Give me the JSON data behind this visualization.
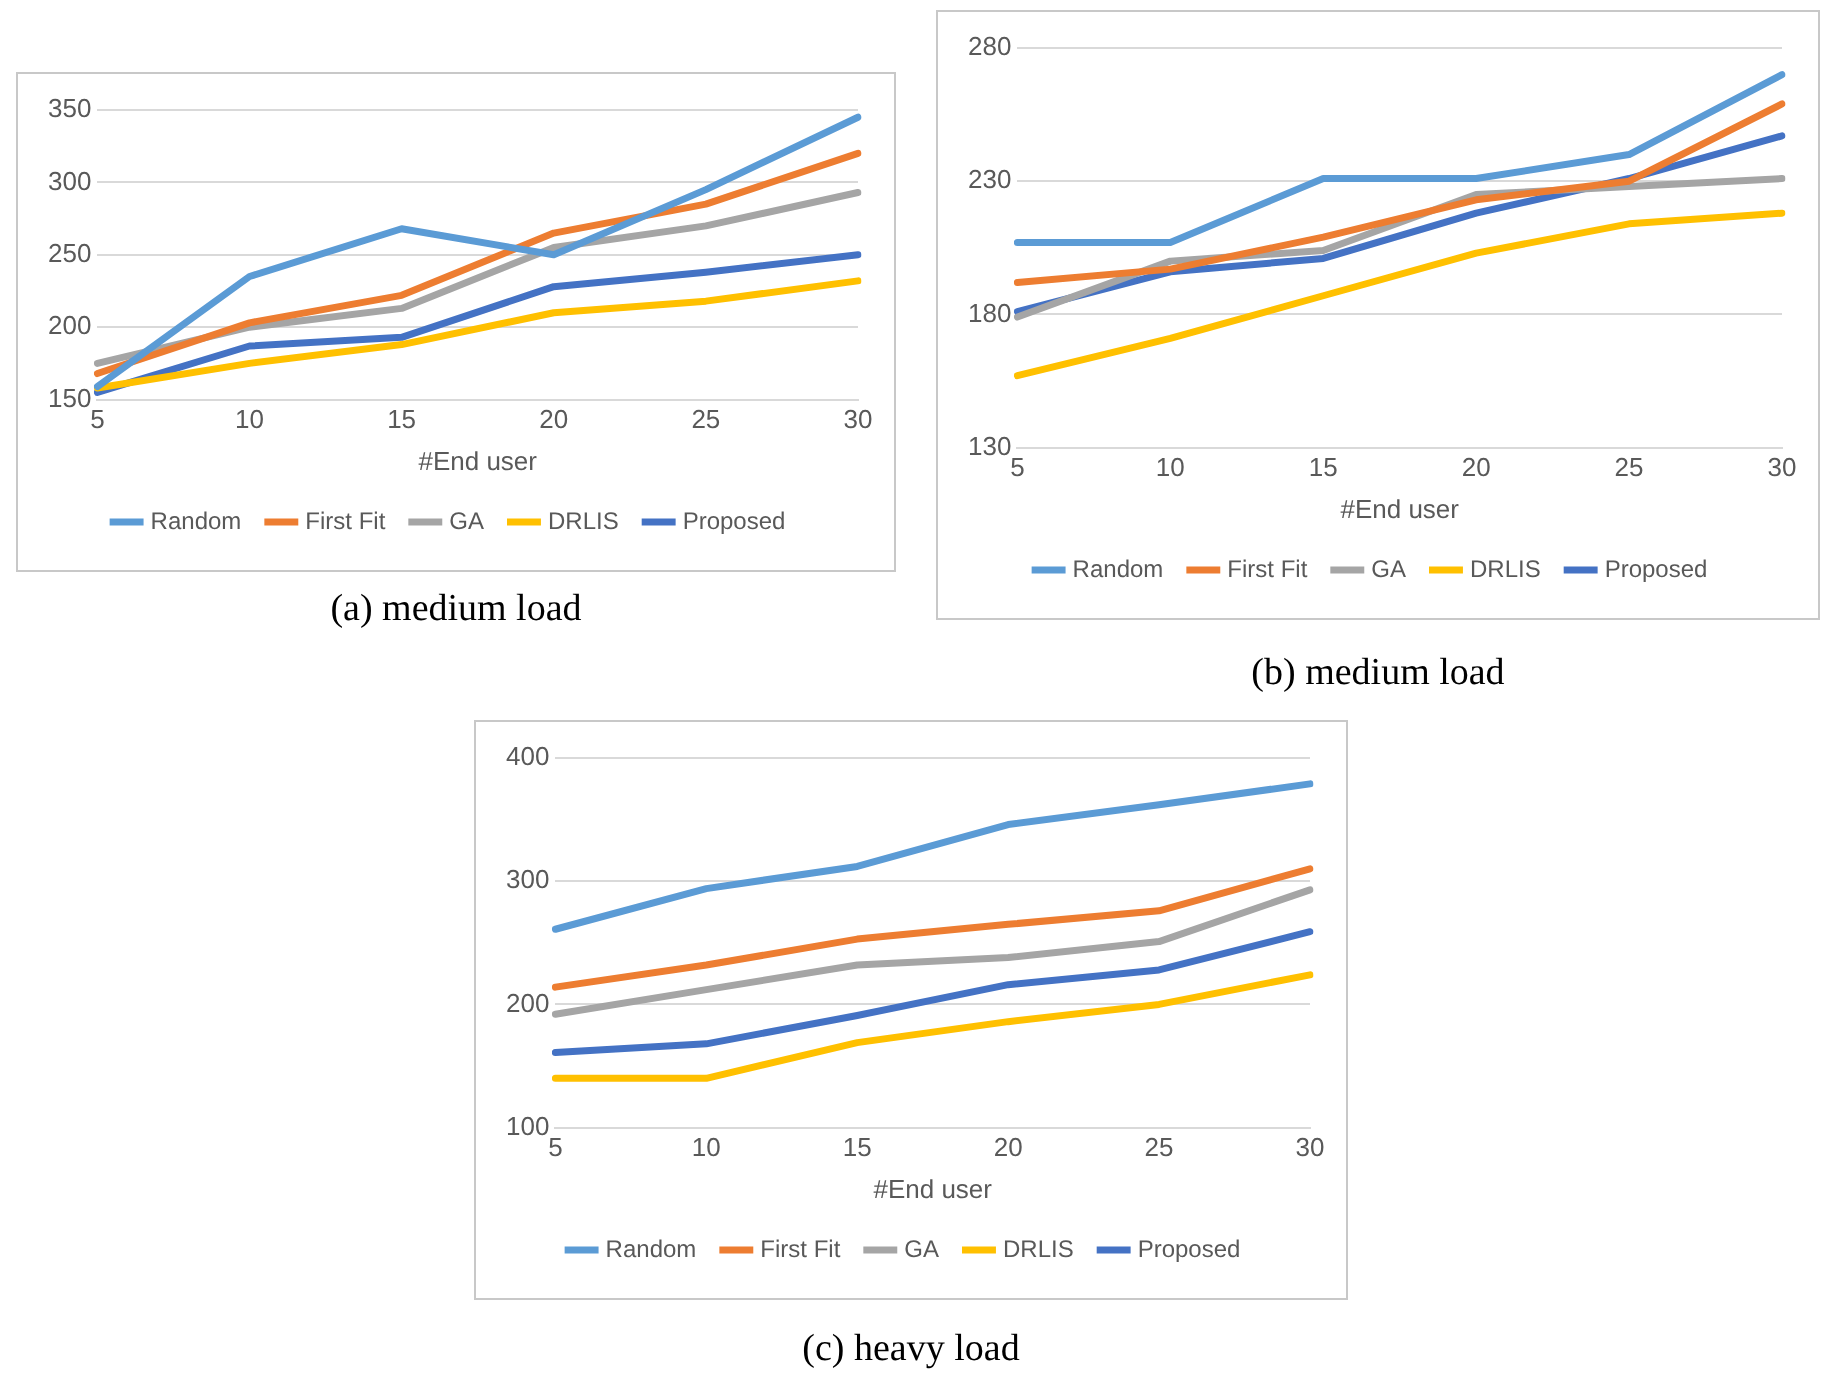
{
  "chart_data": [
    {
      "type": "line",
      "xlabel": "#End user",
      "categories": [
        "5",
        "10",
        "15",
        "20",
        "25",
        "30"
      ],
      "ylim": [
        150,
        350
      ],
      "yticks": [
        150,
        200,
        250,
        300,
        350
      ],
      "grid": "y",
      "legend": "bottom",
      "marker": "none",
      "line_style": "solid",
      "annotations": [
        "(a) medium load"
      ],
      "series": [
        {
          "name": "Random",
          "color": "#5b9bd5",
          "values": [
            159,
            235,
            268,
            250,
            295,
            345
          ]
        },
        {
          "name": "First Fit",
          "color": "#ed7d31",
          "values": [
            168,
            203,
            222,
            265,
            285,
            320
          ]
        },
        {
          "name": "GA",
          "color": "#a5a5a5",
          "values": [
            175,
            200,
            213,
            255,
            270,
            293
          ]
        },
        {
          "name": "DRLIS",
          "color": "#ffc000",
          "values": [
            158,
            175,
            188,
            210,
            218,
            232
          ]
        },
        {
          "name": "Proposed",
          "color": "#4472c4",
          "values": [
            155,
            187,
            193,
            228,
            238,
            250
          ]
        }
      ]
    },
    {
      "type": "line",
      "xlabel": "#End user",
      "categories": [
        "5",
        "10",
        "15",
        "20",
        "25",
        "30"
      ],
      "ylim": [
        130,
        280
      ],
      "yticks": [
        130,
        180,
        230,
        280
      ],
      "grid": "y",
      "legend": "bottom",
      "marker": "none",
      "line_style": "solid",
      "annotations": [
        "(b) medium load"
      ],
      "series": [
        {
          "name": "Random",
          "color": "#5b9bd5",
          "values": [
            207,
            207,
            231,
            231,
            240,
            270
          ]
        },
        {
          "name": "First Fit",
          "color": "#ed7d31",
          "values": [
            192,
            197,
            209,
            223,
            230,
            259
          ]
        },
        {
          "name": "GA",
          "color": "#a5a5a5",
          "values": [
            179,
            200,
            204,
            225,
            228,
            231
          ]
        },
        {
          "name": "DRLIS",
          "color": "#ffc000",
          "values": [
            157,
            171,
            187,
            203,
            214,
            218
          ]
        },
        {
          "name": "Proposed",
          "color": "#4472c4",
          "values": [
            181,
            196,
            201,
            218,
            231,
            247
          ]
        }
      ]
    },
    {
      "type": "line",
      "xlabel": "#End user",
      "categories": [
        "5",
        "10",
        "15",
        "20",
        "25",
        "30"
      ],
      "ylim": [
        100,
        400
      ],
      "yticks": [
        100,
        200,
        300,
        400
      ],
      "grid": "y",
      "legend": "bottom",
      "marker": "none",
      "line_style": "solid",
      "annotations": [
        "(c) heavy load"
      ],
      "series": [
        {
          "name": "Random",
          "color": "#5b9bd5",
          "values": [
            261,
            294,
            312,
            346,
            362,
            379
          ]
        },
        {
          "name": "First Fit",
          "color": "#ed7d31",
          "values": [
            214,
            232,
            253,
            265,
            276,
            310
          ]
        },
        {
          "name": "GA",
          "color": "#a5a5a5",
          "values": [
            192,
            212,
            232,
            238,
            251,
            293
          ]
        },
        {
          "name": "DRLIS",
          "color": "#ffc000",
          "values": [
            140,
            140,
            169,
            186,
            200,
            224
          ]
        },
        {
          "name": "Proposed",
          "color": "#4472c4",
          "values": [
            161,
            168,
            191,
            216,
            228,
            259
          ]
        }
      ]
    }
  ]
}
